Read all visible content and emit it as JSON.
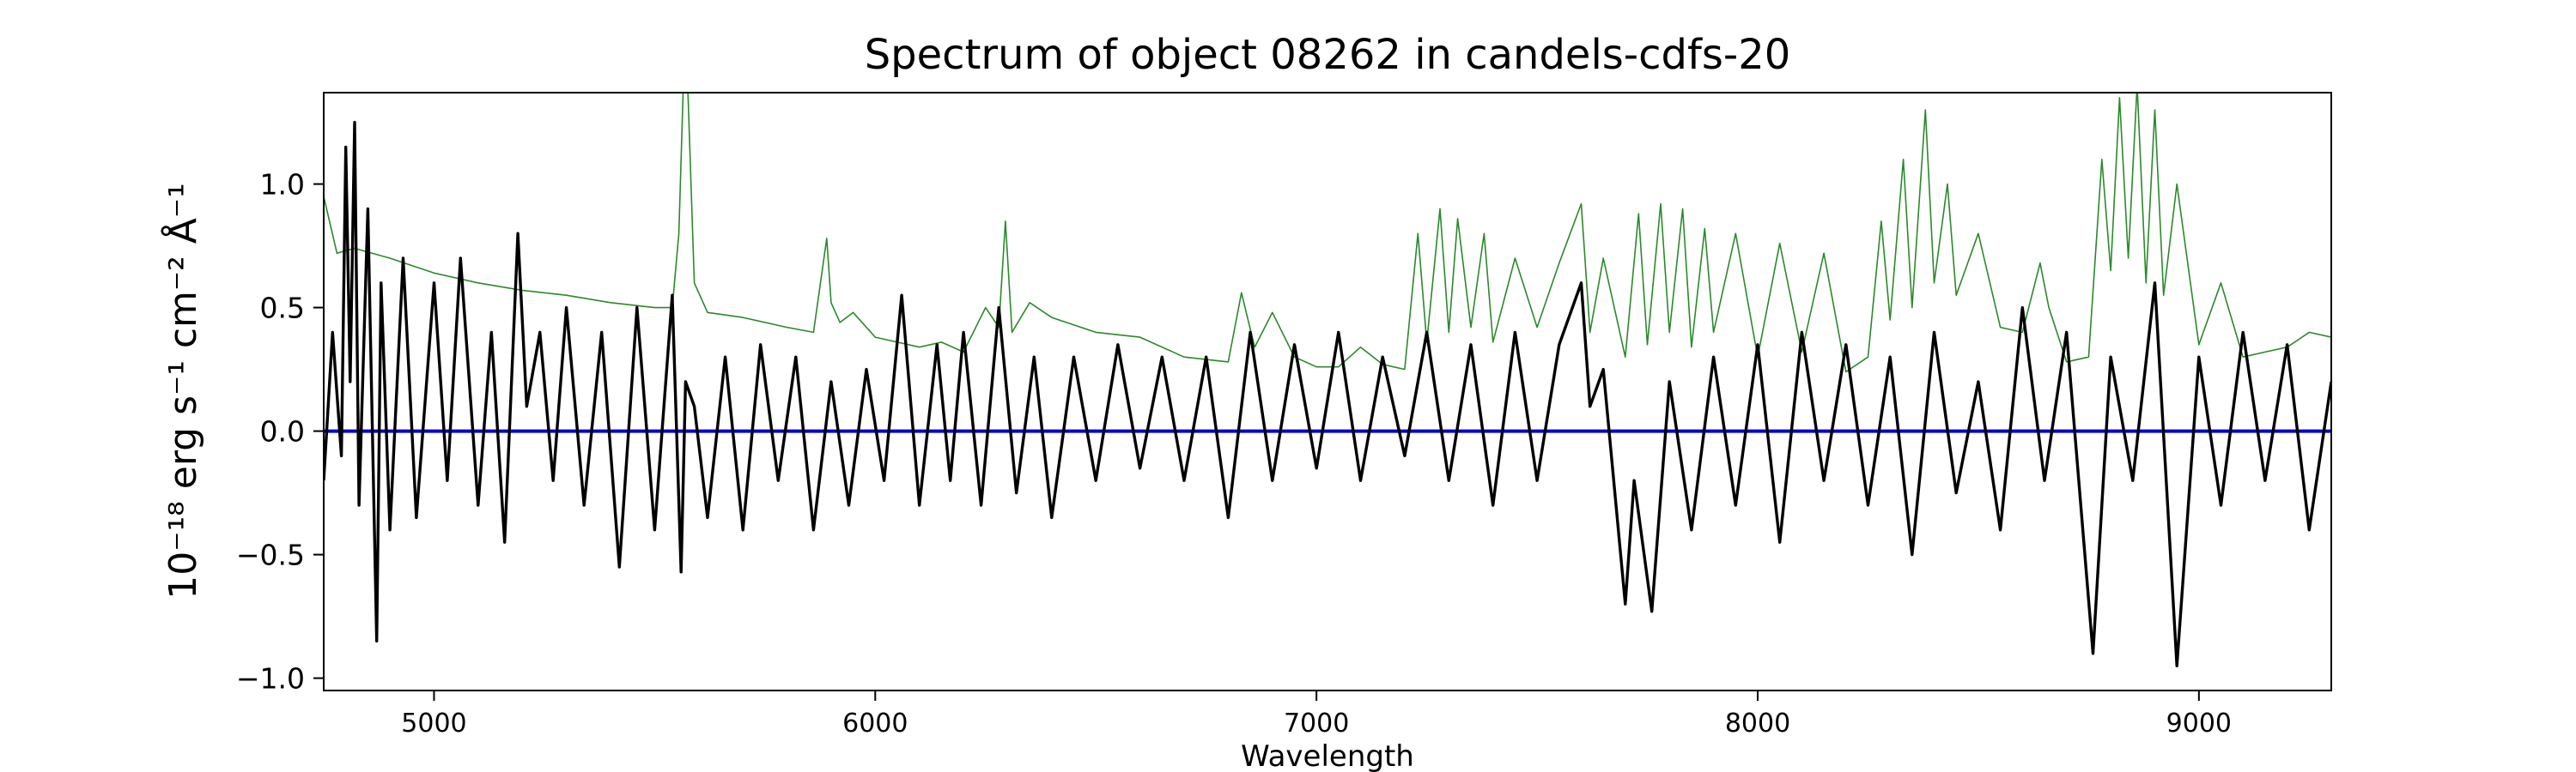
{
  "chart_data": {
    "type": "line",
    "title": "Spectrum of object 08262 in candels-cdfs-20",
    "xlabel": "Wavelength",
    "ylabel": "10⁻¹⁸ erg s⁻¹ cm⁻² Å⁻¹",
    "xlim": [
      4750,
      9300
    ],
    "ylim": [
      -1.05,
      1.37
    ],
    "x_ticks": [
      5000,
      6000,
      7000,
      8000,
      9000
    ],
    "y_ticks": [
      -1.0,
      -0.5,
      0.0,
      0.5,
      1.0
    ],
    "y_tick_labels": [
      "−1.0",
      "−0.5",
      "0.0",
      "0.5",
      "1.0"
    ],
    "grid": false,
    "series": [
      {
        "role": "model",
        "color": "#2a8a2a",
        "x": [
          4750,
          4780,
          4820,
          4900,
          5000,
          5100,
          5200,
          5300,
          5400,
          5500,
          5540,
          5555,
          5565,
          5575,
          5590,
          5620,
          5700,
          5800,
          5860,
          5890,
          5900,
          5920,
          5950,
          6000,
          6050,
          6100,
          6150,
          6200,
          6250,
          6280,
          6295,
          6310,
          6350,
          6400,
          6500,
          6600,
          6700,
          6800,
          6830,
          6860,
          6900,
          6950,
          7000,
          7050,
          7100,
          7150,
          7200,
          7230,
          7250,
          7280,
          7300,
          7320,
          7350,
          7380,
          7400,
          7450,
          7500,
          7550,
          7600,
          7620,
          7650,
          7700,
          7730,
          7750,
          7780,
          7800,
          7830,
          7850,
          7880,
          7900,
          7950,
          8000,
          8050,
          8100,
          8150,
          8200,
          8250,
          8280,
          8300,
          8330,
          8350,
          8380,
          8400,
          8430,
          8450,
          8500,
          8550,
          8600,
          8640,
          8660,
          8700,
          8750,
          8780,
          8800,
          8820,
          8840,
          8860,
          8880,
          8900,
          8920,
          8950,
          9000,
          9050,
          9100,
          9150,
          9200,
          9250,
          9300
        ],
        "y": [
          0.95,
          0.72,
          0.74,
          0.7,
          0.64,
          0.6,
          0.57,
          0.55,
          0.52,
          0.5,
          0.5,
          0.8,
          1.4,
          1.4,
          0.6,
          0.48,
          0.46,
          0.42,
          0.4,
          0.78,
          0.52,
          0.44,
          0.48,
          0.38,
          0.36,
          0.34,
          0.36,
          0.32,
          0.5,
          0.42,
          0.85,
          0.4,
          0.52,
          0.46,
          0.4,
          0.38,
          0.3,
          0.28,
          0.56,
          0.34,
          0.48,
          0.3,
          0.26,
          0.26,
          0.34,
          0.27,
          0.25,
          0.8,
          0.36,
          0.9,
          0.4,
          0.86,
          0.42,
          0.8,
          0.36,
          0.7,
          0.42,
          0.68,
          0.92,
          0.4,
          0.7,
          0.3,
          0.88,
          0.35,
          0.92,
          0.4,
          0.9,
          0.34,
          0.82,
          0.4,
          0.8,
          0.3,
          0.76,
          0.32,
          0.72,
          0.24,
          0.3,
          0.85,
          0.45,
          1.1,
          0.5,
          1.3,
          0.6,
          1.0,
          0.55,
          0.8,
          0.42,
          0.4,
          0.68,
          0.5,
          0.28,
          0.3,
          1.1,
          0.65,
          1.35,
          0.7,
          1.4,
          0.6,
          1.3,
          0.55,
          1.0,
          0.35,
          0.6,
          0.3,
          0.32,
          0.34,
          0.4,
          0.38
        ]
      },
      {
        "role": "zero",
        "color": "#0000cc",
        "x": [
          4750,
          9300
        ],
        "y": [
          0.0,
          0.0
        ]
      },
      {
        "role": "data",
        "color": "#000000",
        "x": [
          4750,
          4770,
          4790,
          4800,
          4810,
          4820,
          4830,
          4850,
          4870,
          4880,
          4900,
          4930,
          4960,
          5000,
          5030,
          5060,
          5100,
          5130,
          5160,
          5190,
          5210,
          5240,
          5270,
          5300,
          5340,
          5380,
          5420,
          5460,
          5500,
          5540,
          5560,
          5570,
          5590,
          5620,
          5660,
          5700,
          5740,
          5780,
          5820,
          5860,
          5900,
          5940,
          5980,
          6020,
          6060,
          6100,
          6140,
          6170,
          6200,
          6240,
          6280,
          6320,
          6360,
          6400,
          6450,
          6500,
          6550,
          6600,
          6650,
          6700,
          6750,
          6800,
          6850,
          6900,
          6950,
          7000,
          7050,
          7100,
          7150,
          7200,
          7250,
          7300,
          7350,
          7400,
          7450,
          7500,
          7550,
          7600,
          7620,
          7650,
          7700,
          7720,
          7760,
          7800,
          7850,
          7900,
          7950,
          8000,
          8050,
          8100,
          8150,
          8200,
          8250,
          8300,
          8350,
          8400,
          8450,
          8500,
          8550,
          8600,
          8650,
          8700,
          8760,
          8800,
          8850,
          8900,
          8950,
          9000,
          9050,
          9100,
          9150,
          9200,
          9250,
          9300
        ],
        "y": [
          -0.2,
          0.4,
          -0.1,
          1.15,
          0.2,
          1.25,
          -0.3,
          0.9,
          -0.85,
          0.6,
          -0.4,
          0.7,
          -0.35,
          0.6,
          -0.2,
          0.7,
          -0.3,
          0.4,
          -0.45,
          0.8,
          0.1,
          0.4,
          -0.2,
          0.5,
          -0.3,
          0.4,
          -0.55,
          0.5,
          -0.4,
          0.55,
          -0.57,
          0.2,
          0.1,
          -0.35,
          0.3,
          -0.4,
          0.35,
          -0.2,
          0.3,
          -0.4,
          0.2,
          -0.3,
          0.25,
          -0.2,
          0.55,
          -0.3,
          0.35,
          -0.2,
          0.4,
          -0.3,
          0.5,
          -0.25,
          0.3,
          -0.35,
          0.3,
          -0.2,
          0.35,
          -0.15,
          0.3,
          -0.2,
          0.3,
          -0.35,
          0.4,
          -0.2,
          0.35,
          -0.15,
          0.4,
          -0.2,
          0.3,
          -0.1,
          0.4,
          -0.2,
          0.35,
          -0.3,
          0.4,
          -0.2,
          0.35,
          0.6,
          0.1,
          0.25,
          -0.7,
          -0.2,
          -0.73,
          0.2,
          -0.4,
          0.3,
          -0.3,
          0.35,
          -0.45,
          0.4,
          -0.2,
          0.35,
          -0.3,
          0.3,
          -0.5,
          0.4,
          -0.25,
          0.2,
          -0.4,
          0.5,
          -0.2,
          0.4,
          -0.9,
          0.3,
          -0.2,
          0.6,
          -0.95,
          0.3,
          -0.3,
          0.4,
          -0.2,
          0.35,
          -0.4,
          0.2
        ]
      }
    ]
  }
}
